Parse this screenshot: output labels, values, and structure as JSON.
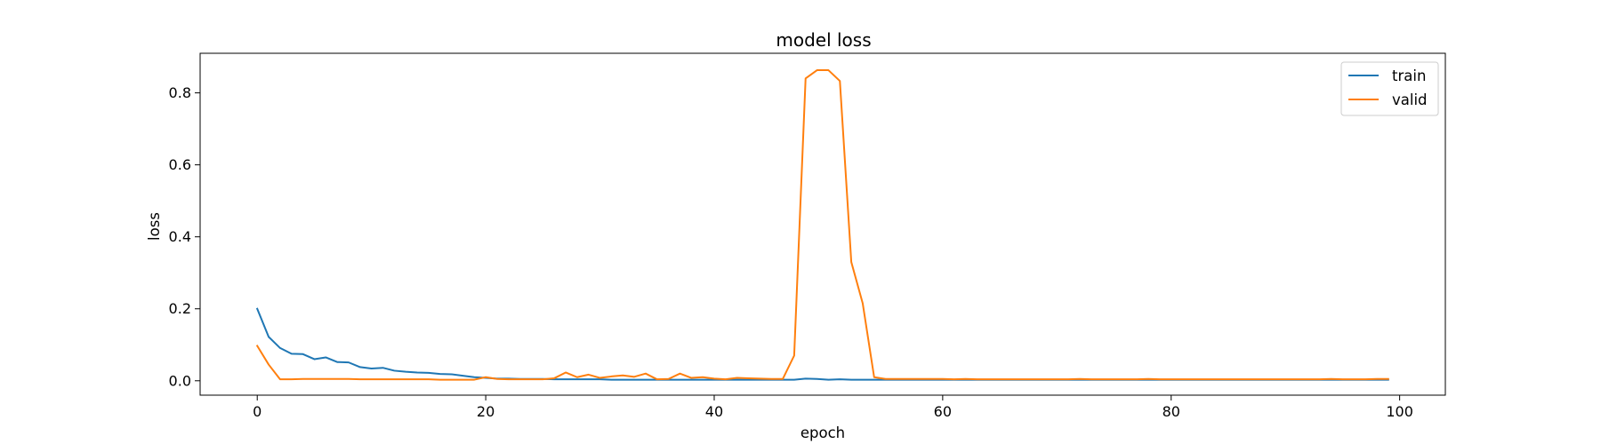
{
  "chart_data": {
    "type": "line",
    "title": "model loss",
    "xlabel": "epoch",
    "ylabel": "loss",
    "xlim": [
      -5,
      104
    ],
    "ylim": [
      -0.04,
      0.91
    ],
    "xticks": [
      0,
      20,
      40,
      60,
      80,
      100
    ],
    "yticks": [
      0.0,
      0.2,
      0.4,
      0.6,
      0.8
    ],
    "legend_position": "top-right",
    "grid": false,
    "x": [
      0,
      1,
      2,
      3,
      4,
      5,
      6,
      7,
      8,
      9,
      10,
      11,
      12,
      13,
      14,
      15,
      16,
      17,
      18,
      19,
      20,
      21,
      22,
      23,
      24,
      25,
      26,
      27,
      28,
      29,
      30,
      31,
      32,
      33,
      34,
      35,
      36,
      37,
      38,
      39,
      40,
      41,
      42,
      43,
      44,
      45,
      46,
      47,
      48,
      49,
      50,
      51,
      52,
      53,
      54,
      55,
      56,
      57,
      58,
      59,
      60,
      61,
      62,
      63,
      64,
      65,
      66,
      67,
      68,
      69,
      70,
      71,
      72,
      73,
      74,
      75,
      76,
      77,
      78,
      79,
      80,
      81,
      82,
      83,
      84,
      85,
      86,
      87,
      88,
      89,
      90,
      91,
      92,
      93,
      94,
      95,
      96,
      97,
      98,
      99
    ],
    "series": [
      {
        "name": "train",
        "color": "#1f77b4",
        "values": [
          0.2,
          0.122,
          0.091,
          0.075,
          0.074,
          0.06,
          0.065,
          0.052,
          0.051,
          0.038,
          0.034,
          0.036,
          0.028,
          0.025,
          0.023,
          0.022,
          0.019,
          0.018,
          0.014,
          0.01,
          0.008,
          0.006,
          0.006,
          0.005,
          0.005,
          0.005,
          0.004,
          0.004,
          0.004,
          0.004,
          0.004,
          0.003,
          0.003,
          0.003,
          0.003,
          0.003,
          0.003,
          0.003,
          0.003,
          0.003,
          0.003,
          0.003,
          0.003,
          0.003,
          0.003,
          0.003,
          0.003,
          0.003,
          0.006,
          0.005,
          0.003,
          0.004,
          0.003,
          0.003,
          0.003,
          0.003,
          0.003,
          0.003,
          0.003,
          0.003,
          0.003,
          0.003,
          0.003,
          0.003,
          0.003,
          0.003,
          0.003,
          0.003,
          0.003,
          0.003,
          0.003,
          0.003,
          0.003,
          0.003,
          0.003,
          0.003,
          0.003,
          0.003,
          0.003,
          0.003,
          0.003,
          0.003,
          0.003,
          0.003,
          0.003,
          0.003,
          0.003,
          0.003,
          0.003,
          0.003,
          0.003,
          0.003,
          0.003,
          0.003,
          0.003,
          0.003,
          0.003,
          0.003,
          0.003,
          0.003
        ]
      },
      {
        "name": "valid",
        "color": "#ff7f0e",
        "values": [
          0.097,
          0.045,
          0.004,
          0.004,
          0.005,
          0.005,
          0.005,
          0.005,
          0.005,
          0.004,
          0.004,
          0.004,
          0.004,
          0.004,
          0.004,
          0.004,
          0.003,
          0.003,
          0.003,
          0.003,
          0.01,
          0.005,
          0.004,
          0.004,
          0.004,
          0.004,
          0.007,
          0.023,
          0.01,
          0.017,
          0.008,
          0.012,
          0.015,
          0.011,
          0.02,
          0.004,
          0.005,
          0.02,
          0.008,
          0.01,
          0.006,
          0.004,
          0.008,
          0.007,
          0.006,
          0.005,
          0.005,
          0.07,
          0.84,
          0.863,
          0.863,
          0.833,
          0.33,
          0.215,
          0.01,
          0.005,
          0.005,
          0.005,
          0.005,
          0.005,
          0.005,
          0.004,
          0.005,
          0.004,
          0.004,
          0.004,
          0.004,
          0.004,
          0.004,
          0.004,
          0.004,
          0.004,
          0.005,
          0.004,
          0.004,
          0.004,
          0.004,
          0.004,
          0.005,
          0.004,
          0.004,
          0.004,
          0.004,
          0.004,
          0.004,
          0.004,
          0.004,
          0.004,
          0.004,
          0.004,
          0.004,
          0.004,
          0.004,
          0.004,
          0.005,
          0.004,
          0.004,
          0.004,
          0.005,
          0.005
        ]
      }
    ]
  }
}
